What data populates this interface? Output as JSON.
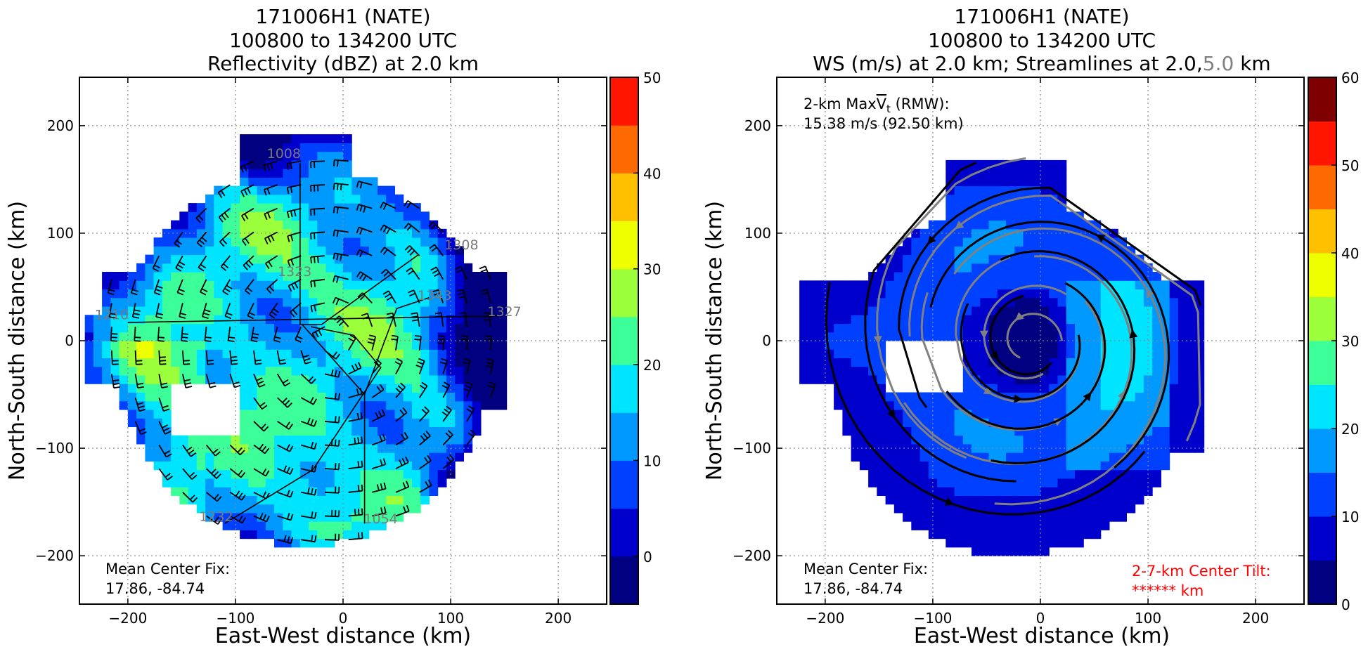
{
  "colors": {
    "levels": [
      "#000080",
      "#0000cd",
      "#0040ff",
      "#0099ff",
      "#00e5ff",
      "#3cff9a",
      "#9cff3c",
      "#eeff00",
      "#ffc000",
      "#ff6a00",
      "#ff1500",
      "#7f0000"
    ],
    "barb": "#000000",
    "stream_black": "#000000",
    "stream_gray": "#808080",
    "tilt_text": "#ff0000",
    "grid": "#888888"
  },
  "chart_data": [
    {
      "type": "heatmap",
      "panel": "left",
      "title": [
        "171006H1 (NATE)",
        "100800 to 134200 UTC",
        "Reflectivity (dBZ) at 2.0 km"
      ],
      "xlabel": "East-West distance (km)",
      "ylabel": "North-South distance (km)",
      "xlim": [
        -245,
        245
      ],
      "ylim": [
        -245,
        245
      ],
      "xticks": [
        -200,
        -100,
        0,
        100,
        200
      ],
      "yticks": [
        -200,
        -100,
        0,
        100,
        200
      ],
      "grid": true,
      "colorbar": {
        "min": -5,
        "max": 50,
        "step": 5,
        "tick_values": [
          0,
          10,
          20,
          30,
          40,
          50
        ],
        "tick_labels": [
          "0",
          "10",
          "20",
          "30",
          "40",
          "50"
        ]
      },
      "annotation": [
        "Mean Center Fix:",
        "17.86, -84.74"
      ],
      "flight_track_labels": [
        {
          "text": "1008",
          "x": -55,
          "y": 170
        },
        {
          "text": "1308",
          "x": 110,
          "y": 85
        },
        {
          "text": "1323",
          "x": -45,
          "y": 60
        },
        {
          "text": "1343",
          "x": 85,
          "y": 38
        },
        {
          "text": "1210",
          "x": -215,
          "y": 20
        },
        {
          "text": "1327",
          "x": 150,
          "y": 23
        },
        {
          "text": "1232",
          "x": -118,
          "y": -168
        },
        {
          "text": "1054",
          "x": 35,
          "y": -170
        }
      ],
      "flight_track": [
        [
          [
            -200,
            17
          ],
          [
            145,
            23
          ]
        ],
        [
          [
            -40,
            165
          ],
          [
            -40,
            15
          ],
          [
            -20,
            15
          ],
          [
            70,
            80
          ]
        ],
        [
          [
            -38,
            15
          ],
          [
            20,
            -50
          ],
          [
            20,
            -170
          ]
        ],
        [
          [
            -30,
            13
          ],
          [
            10,
            5
          ],
          [
            35,
            -25
          ],
          [
            -28,
            -120
          ],
          [
            -110,
            -170
          ]
        ],
        [
          [
            20,
            -50
          ],
          [
            50,
            30
          ],
          [
            80,
            40
          ]
        ]
      ]
    },
    {
      "type": "heatmap",
      "panel": "right",
      "title": [
        "171006H1 (NATE)",
        "100800 to 134200 UTC"
      ],
      "title_line3": {
        "prefix": "WS (m/s) at 2.0 km; Streamlines at 2.0,",
        "gray": "5.0",
        "suffix": " km"
      },
      "xlabel": "East-West distance (km)",
      "ylabel": "North-South distance (km)",
      "xlim": [
        -245,
        245
      ],
      "ylim": [
        -245,
        245
      ],
      "xticks": [
        -200,
        -100,
        0,
        100,
        200
      ],
      "yticks": [
        -200,
        -100,
        0,
        100,
        200
      ],
      "grid": true,
      "colorbar": {
        "min": 0,
        "max": 60,
        "step": 5,
        "tick_values": [
          0,
          10,
          20,
          30,
          40,
          50,
          60
        ],
        "tick_labels": [
          "0",
          "10",
          "20",
          "30",
          "40",
          "50",
          "60"
        ]
      },
      "annotation_top": {
        "line1_prefix": "2-km Max",
        "line1_sym": "V",
        "line1_sub": "t",
        "line1_suffix": " (RMW):",
        "line2": "15.38 m/s (92.50 km)"
      },
      "annotation": [
        "Mean Center Fix:",
        "17.86, -84.74"
      ],
      "tilt_annotation": [
        "2-7-km Center Tilt:",
        "****** km"
      ],
      "vortex_center": [
        -10,
        0
      ],
      "max_vt": 15.38,
      "rmw_km": 92.5
    }
  ],
  "labels": {
    "xtick_texts": [
      "−200",
      "−100",
      "0",
      "100",
      "200"
    ],
    "ytick_texts": [
      "−200",
      "−100",
      "0",
      "100",
      "200"
    ]
  }
}
